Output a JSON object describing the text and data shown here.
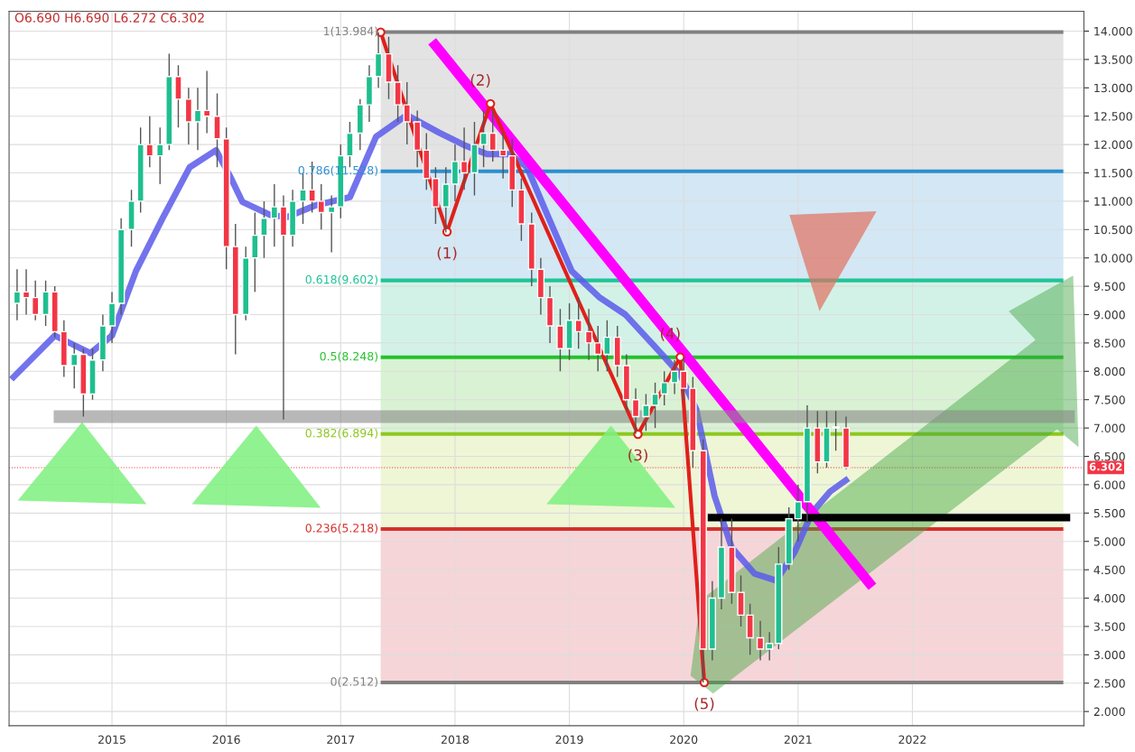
{
  "chart_data": {
    "type": "candlestick",
    "x": [
      2014.17,
      2014.25,
      2014.33,
      2014.42,
      2014.5,
      2014.58,
      2014.67,
      2014.75,
      2014.83,
      2014.92,
      2015.0,
      2015.08,
      2015.17,
      2015.25,
      2015.33,
      2015.42,
      2015.5,
      2015.58,
      2015.67,
      2015.75,
      2015.83,
      2015.92,
      2016.0,
      2016.08,
      2016.17,
      2016.25,
      2016.33,
      2016.42,
      2016.5,
      2016.58,
      2016.67,
      2016.75,
      2016.83,
      2016.92,
      2017.0,
      2017.08,
      2017.17,
      2017.25,
      2017.33,
      2017.42,
      2017.5,
      2017.58,
      2017.67,
      2017.75,
      2017.83,
      2017.92,
      2018.0,
      2018.08,
      2018.17,
      2018.25,
      2018.33,
      2018.42,
      2018.5,
      2018.58,
      2018.67,
      2018.75,
      2018.83,
      2018.92,
      2019.0,
      2019.08,
      2019.17,
      2019.25,
      2019.33,
      2019.42,
      2019.5,
      2019.58,
      2019.67,
      2019.75,
      2019.83,
      2019.92,
      2020.0,
      2020.08,
      2020.17,
      2020.25,
      2020.33,
      2020.42,
      2020.5,
      2020.58,
      2020.67,
      2020.75,
      2020.83,
      2020.92,
      2021.0,
      2021.08,
      2021.17,
      2021.25,
      2021.33,
      2021.42
    ],
    "ohlc": [
      [
        9.2,
        9.8,
        8.9,
        9.4
      ],
      [
        9.4,
        9.8,
        9.0,
        9.3
      ],
      [
        9.3,
        9.6,
        8.9,
        9.0
      ],
      [
        9.0,
        9.6,
        8.8,
        9.4
      ],
      [
        9.4,
        9.5,
        8.6,
        8.7
      ],
      [
        8.7,
        8.9,
        7.9,
        8.1
      ],
      [
        8.1,
        8.5,
        7.7,
        8.3
      ],
      [
        8.3,
        8.4,
        7.2,
        7.6
      ],
      [
        7.6,
        8.4,
        7.5,
        8.2
      ],
      [
        8.2,
        9.0,
        8.0,
        8.8
      ],
      [
        8.8,
        9.4,
        8.5,
        9.2
      ],
      [
        9.2,
        10.7,
        9.0,
        10.5
      ],
      [
        10.5,
        11.2,
        10.2,
        11.0
      ],
      [
        11.0,
        12.3,
        10.8,
        12.0
      ],
      [
        12.0,
        12.5,
        11.6,
        11.8
      ],
      [
        11.8,
        12.3,
        11.3,
        12.0
      ],
      [
        12.0,
        13.6,
        11.9,
        13.2
      ],
      [
        13.2,
        13.4,
        12.3,
        12.8
      ],
      [
        12.8,
        13.0,
        12.0,
        12.4
      ],
      [
        12.4,
        13.0,
        11.9,
        12.6
      ],
      [
        12.6,
        13.3,
        12.2,
        12.5
      ],
      [
        12.5,
        12.9,
        11.6,
        12.1
      ],
      [
        12.1,
        12.3,
        9.8,
        10.2
      ],
      [
        10.2,
        10.6,
        8.3,
        9.0
      ],
      [
        9.0,
        10.2,
        8.9,
        10.0
      ],
      [
        10.0,
        10.8,
        9.4,
        10.4
      ],
      [
        10.4,
        11.0,
        10.0,
        10.7
      ],
      [
        10.7,
        11.3,
        10.2,
        10.9
      ],
      [
        10.9,
        11.1,
        7.15,
        10.4
      ],
      [
        10.4,
        11.2,
        10.2,
        11.0
      ],
      [
        11.0,
        11.5,
        10.6,
        11.2
      ],
      [
        11.2,
        11.7,
        10.8,
        11.0
      ],
      [
        11.0,
        11.3,
        10.5,
        10.8
      ],
      [
        10.8,
        11.1,
        10.1,
        10.9
      ],
      [
        10.9,
        12.0,
        10.7,
        11.8
      ],
      [
        11.8,
        12.4,
        11.6,
        12.2
      ],
      [
        12.2,
        12.8,
        11.9,
        12.7
      ],
      [
        12.7,
        13.4,
        12.4,
        13.2
      ],
      [
        13.2,
        13.98,
        13.0,
        13.6
      ],
      [
        13.6,
        13.9,
        12.8,
        13.1
      ],
      [
        13.1,
        13.4,
        12.4,
        12.7
      ],
      [
        12.7,
        13.1,
        12.0,
        12.4
      ],
      [
        12.4,
        12.6,
        11.6,
        11.9
      ],
      [
        11.9,
        12.2,
        11.2,
        11.4
      ],
      [
        11.4,
        11.6,
        10.6,
        10.9
      ],
      [
        10.9,
        11.6,
        10.45,
        11.3
      ],
      [
        11.3,
        12.0,
        11.0,
        11.7
      ],
      [
        11.7,
        12.3,
        11.2,
        11.5
      ],
      [
        11.5,
        12.4,
        11.1,
        12.0
      ],
      [
        12.0,
        12.6,
        11.6,
        12.2
      ],
      [
        12.2,
        12.6,
        11.7,
        11.9
      ],
      [
        11.9,
        12.2,
        11.4,
        11.8
      ],
      [
        11.8,
        12.1,
        10.9,
        11.2
      ],
      [
        11.2,
        11.4,
        10.3,
        10.6
      ],
      [
        10.6,
        10.8,
        9.5,
        9.8
      ],
      [
        9.8,
        10.0,
        9.0,
        9.3
      ],
      [
        9.3,
        9.5,
        8.5,
        8.8
      ],
      [
        8.8,
        9.1,
        8.0,
        8.4
      ],
      [
        8.4,
        9.2,
        8.2,
        8.9
      ],
      [
        8.9,
        9.3,
        8.4,
        8.7
      ],
      [
        8.7,
        9.1,
        8.2,
        8.5
      ],
      [
        8.5,
        8.8,
        8.0,
        8.3
      ],
      [
        8.3,
        8.9,
        8.0,
        8.6
      ],
      [
        8.6,
        8.8,
        7.9,
        8.1
      ],
      [
        8.1,
        8.3,
        7.3,
        7.5
      ],
      [
        7.5,
        7.7,
        6.9,
        7.2
      ],
      [
        7.2,
        7.6,
        6.95,
        7.4
      ],
      [
        7.4,
        7.8,
        7.0,
        7.6
      ],
      [
        7.6,
        8.0,
        7.4,
        7.8
      ],
      [
        7.8,
        8.2,
        7.6,
        8.0
      ],
      [
        8.0,
        8.25,
        7.5,
        7.7
      ],
      [
        7.7,
        7.9,
        6.3,
        6.6
      ],
      [
        6.6,
        6.8,
        2.512,
        3.1
      ],
      [
        3.1,
        4.3,
        2.9,
        4.0
      ],
      [
        4.0,
        5.4,
        3.8,
        4.9
      ],
      [
        4.9,
        5.4,
        3.9,
        4.1
      ],
      [
        4.1,
        4.4,
        3.5,
        3.7
      ],
      [
        3.7,
        3.9,
        3.0,
        3.3
      ],
      [
        3.3,
        3.6,
        2.9,
        3.1
      ],
      [
        3.1,
        3.4,
        2.9,
        3.2
      ],
      [
        3.2,
        4.9,
        3.1,
        4.6
      ],
      [
        4.6,
        5.6,
        4.5,
        5.4
      ],
      [
        5.4,
        6.0,
        5.0,
        5.7
      ],
      [
        5.7,
        7.4,
        5.33,
        7.0
      ],
      [
        7.0,
        7.3,
        6.2,
        6.4
      ],
      [
        6.4,
        7.3,
        6.3,
        7.0
      ],
      [
        7.0,
        7.3,
        6.6,
        7.0
      ],
      [
        7.0,
        7.2,
        6.272,
        6.302
      ]
    ],
    "series": [
      {
        "type": "line",
        "color": "#5b5bea",
        "x": [
          2014.12,
          2014.5,
          2014.81,
          2015.0,
          2015.21,
          2015.44,
          2015.68,
          2015.91,
          2016.03,
          2016.14,
          2016.38,
          2016.53,
          2016.77,
          2017.08,
          2017.31,
          2017.58,
          2017.86,
          2018.09,
          2018.28,
          2018.48,
          2018.63,
          2018.79,
          2019.02,
          2019.26,
          2019.49,
          2019.8,
          2019.97,
          2020.11,
          2020.27,
          2020.42,
          2020.62,
          2020.81,
          2020.97,
          2021.12,
          2021.28,
          2021.44
        ],
        "values": [
          7.86,
          8.63,
          8.32,
          8.63,
          9.77,
          10.69,
          11.6,
          11.9,
          11.45,
          10.99,
          10.76,
          10.72,
          10.92,
          11.07,
          12.14,
          12.52,
          12.21,
          11.98,
          11.83,
          11.83,
          11.6,
          10.84,
          9.77,
          9.31,
          9.0,
          8.32,
          7.94,
          7.33,
          5.8,
          4.89,
          4.43,
          4.31,
          4.81,
          5.5,
          5.88,
          6.11
        ]
      },
      {
        "type": "line",
        "color": "#e0201b",
        "marker": "circle",
        "x": [
          2017.35,
          2017.93,
          2018.31,
          2019.6,
          2019.97,
          2020.18
        ],
        "values": [
          13.98,
          10.46,
          12.72,
          6.89,
          8.25,
          2.51
        ]
      },
      {
        "type": "line",
        "color": "#ff00ff",
        "x": [
          2017.8,
          2021.65
        ],
        "values": [
          13.82,
          4.2
        ]
      },
      {
        "type": "line",
        "color": "#000000",
        "x": [
          2020.21,
          2023.38
        ],
        "values": [
          5.42,
          5.42
        ]
      },
      {
        "type": "line",
        "color": "#888888",
        "x": [
          2014.49,
          2023.42
        ],
        "values": [
          7.2,
          7.2
        ]
      }
    ],
    "ref_lines": [
      {
        "axis": "y",
        "value": 13.984,
        "label": "1(13.984)",
        "color": "#808080"
      },
      {
        "axis": "y",
        "value": 11.528,
        "label": "0.786(11.528)",
        "color": "#2b8fcf"
      },
      {
        "axis": "y",
        "value": 9.602,
        "label": "0.618(9.602)",
        "color": "#20c497"
      },
      {
        "axis": "y",
        "value": 8.248,
        "label": "0.5(8.248)",
        "color": "#24c22c"
      },
      {
        "axis": "y",
        "value": 6.894,
        "label": "0.382(6.894)",
        "color": "#8cc81e"
      },
      {
        "axis": "y",
        "value": 5.218,
        "label": "0.236(5.218)",
        "color": "#d6302a"
      },
      {
        "axis": "y",
        "value": 2.512,
        "label": "0(2.512)",
        "color": "#808080"
      },
      {
        "axis": "y",
        "value": 6.302,
        "label": "6.302",
        "color": "#f23645",
        "line_style": "dotted"
      }
    ],
    "bands": [
      {
        "axis": "y",
        "from": 11.528,
        "to": 13.984,
        "color": "#e3e3e3"
      },
      {
        "axis": "y",
        "from": 9.602,
        "to": 11.528,
        "color": "#d3e7f4"
      },
      {
        "axis": "y",
        "from": 8.248,
        "to": 9.602,
        "color": "#d3f2e7"
      },
      {
        "axis": "y",
        "from": 6.894,
        "to": 8.248,
        "color": "#d8f2d3"
      },
      {
        "axis": "y",
        "from": 5.218,
        "to": 6.894,
        "color": "#eef6d6"
      },
      {
        "axis": "y",
        "from": 2.512,
        "to": 5.218,
        "color": "#f6d5d8"
      }
    ],
    "annotations": [
      "O6.690 H6.690 L6.272 C6.302",
      {
        "text": "(1)",
        "x": 2017.93,
        "y": 10.46
      },
      {
        "text": "(2)",
        "x": 2018.31,
        "y": 12.72
      },
      {
        "text": "(3)",
        "x": 2019.6,
        "y": 6.894
      },
      {
        "text": "(4)",
        "x": 2019.97,
        "y": 8.25
      },
      {
        "text": "(5)",
        "x": 2020.18,
        "y": 2.512
      }
    ],
    "xlim": [
      2014.1,
      2023.5
    ],
    "ylim": [
      1.75,
      14.35
    ],
    "xticks": [
      2015,
      2016,
      2017,
      2018,
      2019,
      2020,
      2021,
      2022
    ],
    "yticks": [
      {
        "value": 2,
        "label": "2.000"
      },
      {
        "value": 2.5,
        "label": "2.500"
      },
      {
        "value": 3,
        "label": "3.000"
      },
      {
        "value": 3.5,
        "label": "3.500"
      },
      {
        "value": 4,
        "label": "4.000"
      },
      {
        "value": 4.5,
        "label": "4.500"
      },
      {
        "value": 5,
        "label": "5.000"
      },
      {
        "value": 5.5,
        "label": "5.500"
      },
      {
        "value": 6,
        "label": "6.000"
      },
      {
        "value": 6.5,
        "label": "6.500"
      },
      {
        "value": 7,
        "label": "7.000"
      },
      {
        "value": 7.5,
        "label": "7.500"
      },
      {
        "value": 8,
        "label": "8.000"
      },
      {
        "value": 8.5,
        "label": "8.500"
      },
      {
        "value": 9,
        "label": "9.000"
      },
      {
        "value": 9.5,
        "label": "9.500"
      },
      {
        "value": 10,
        "label": "10.000"
      },
      {
        "value": 10.5,
        "label": "10.500"
      },
      {
        "value": 11,
        "label": "11.000"
      },
      {
        "value": 11.5,
        "label": "11.500"
      },
      {
        "value": 12,
        "label": "12.000"
      },
      {
        "value": 12.5,
        "label": "12.500"
      },
      {
        "value": 13,
        "label": "13.000"
      },
      {
        "value": 13.5,
        "label": "13.500"
      },
      {
        "value": 14,
        "label": "14.000"
      }
    ],
    "grid": true
  }
}
